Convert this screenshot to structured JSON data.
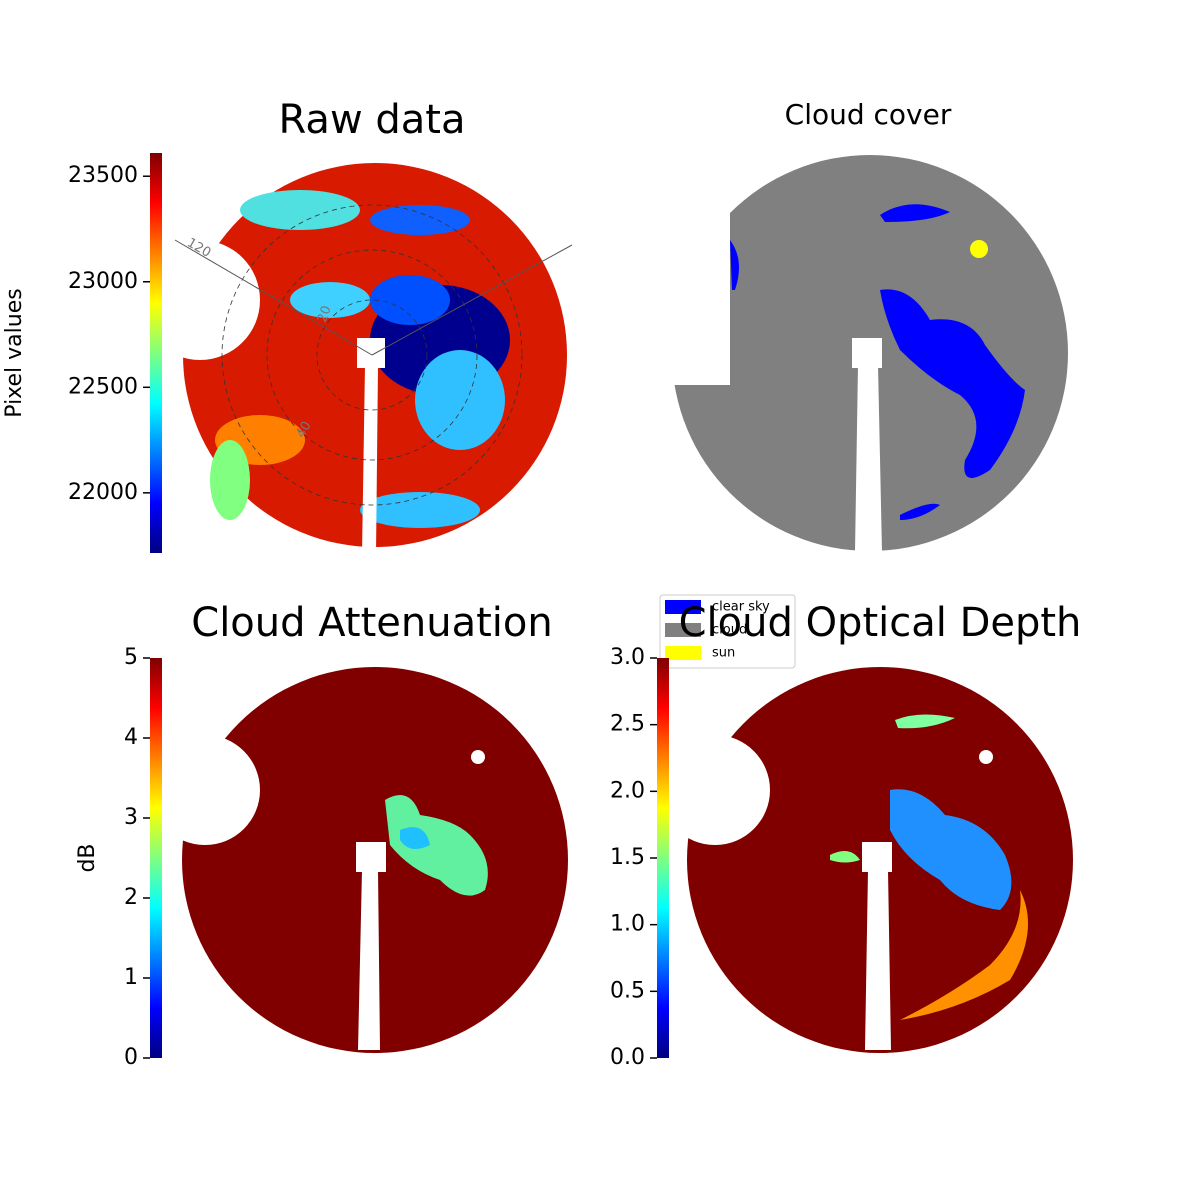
{
  "chart_data": [
    {
      "type": "image",
      "title": "Raw data",
      "polar_labels": [
        "120",
        "20",
        "40"
      ],
      "colorbar": {
        "label": "Pixel values",
        "colormap": "jet",
        "lim": [
          21715,
          23610
        ],
        "ticks": [
          22000,
          22500,
          23000,
          23500
        ]
      }
    },
    {
      "type": "image",
      "title": "Cloud cover",
      "legend": {
        "loc": "lower left",
        "series": [
          {
            "name": "clear sky",
            "color": "#0000ff"
          },
          {
            "name": "cloud",
            "color": "#808080"
          },
          {
            "name": "sun",
            "color": "#ffff00"
          }
        ]
      }
    },
    {
      "type": "image",
      "title": "Cloud Attenuation",
      "colorbar": {
        "label": "dB",
        "colormap": "jet",
        "lim": [
          0,
          5
        ],
        "ticks": [
          0,
          1,
          2,
          3,
          4,
          5
        ]
      }
    },
    {
      "type": "image",
      "title": "Cloud Optical Depth",
      "colorbar": {
        "colormap": "jet",
        "lim": [
          0,
          3
        ],
        "ticks": [
          {
            "value": 0,
            "label": "0.0"
          },
          0.5,
          {
            "value": 1,
            "label": "1.0"
          },
          1.5,
          {
            "value": 2,
            "label": "2.0"
          },
          2.5,
          {
            "value": 3,
            "label": "3.0"
          }
        ]
      }
    }
  ]
}
